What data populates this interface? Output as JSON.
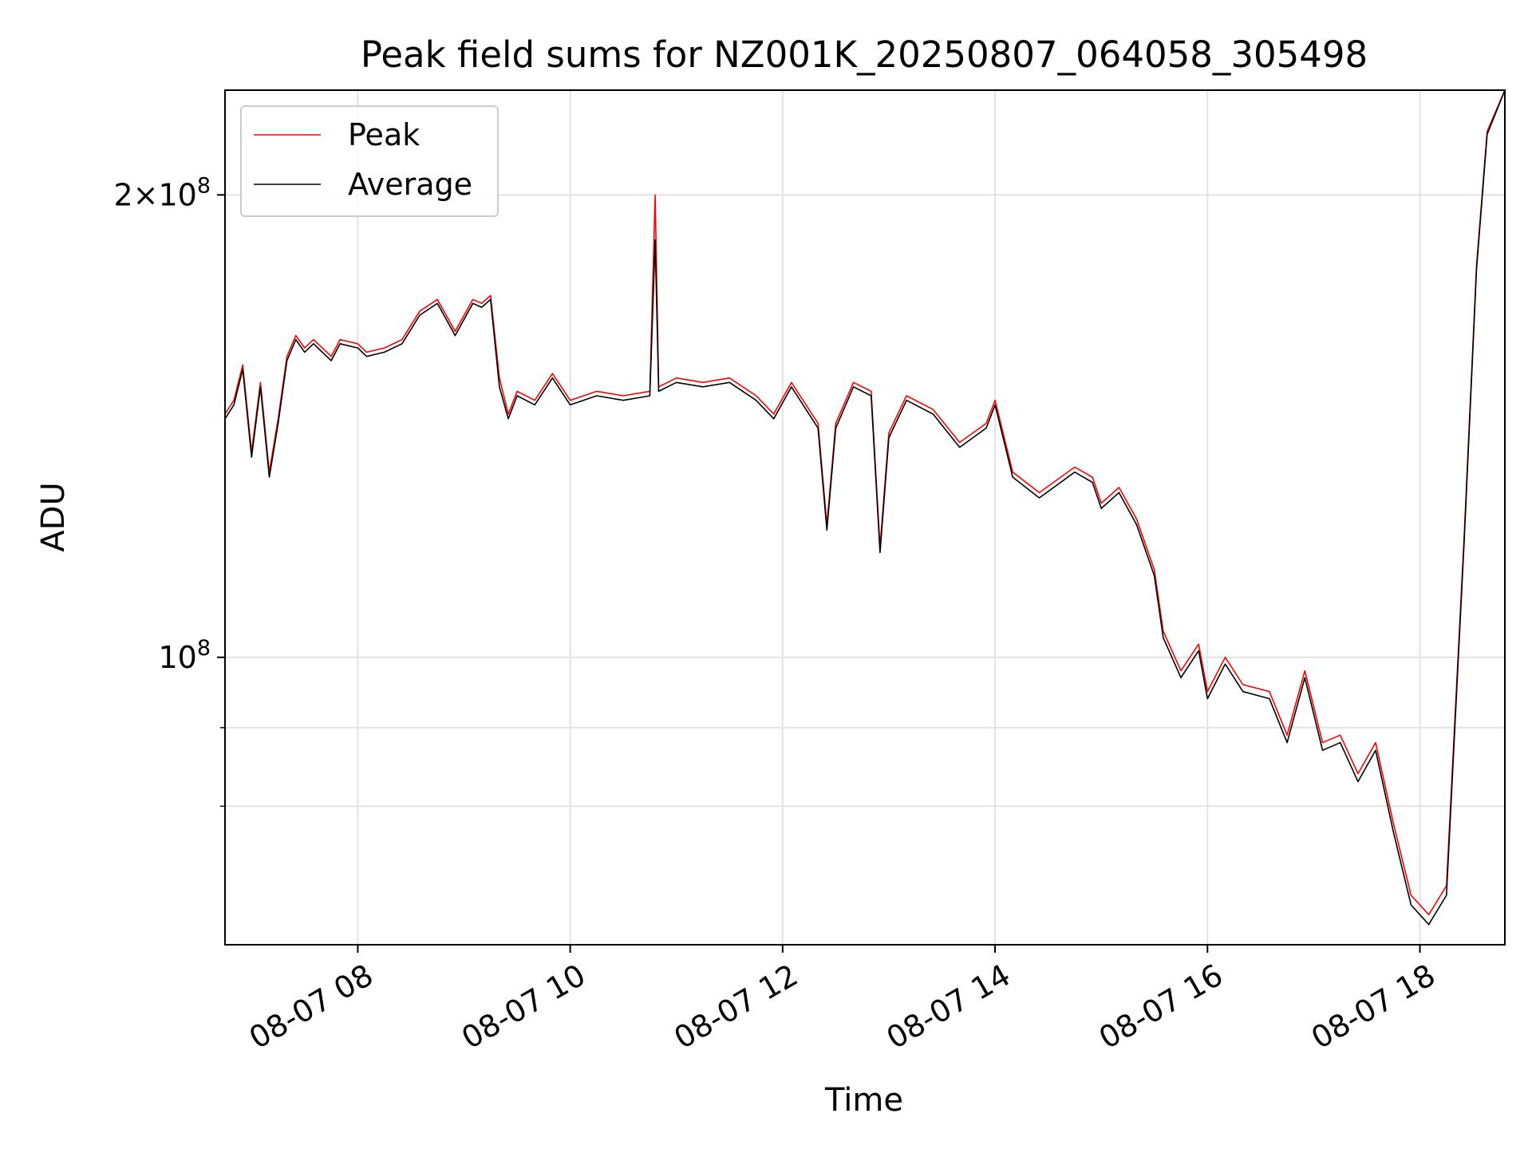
{
  "chart_data": {
    "type": "line",
    "title": "Peak field sums for NZ001K_20250807_064058_305498",
    "xlabel": "Time",
    "ylabel": "ADU",
    "y_scale": "log",
    "xlim": [
      "2025-08-07 06:45",
      "2025-08-07 18:48"
    ],
    "ylim": [
      65000000.0,
      234000000.0
    ],
    "x_ticks": [
      {
        "value": "2025-08-07 08:00",
        "label": "08-07 08"
      },
      {
        "value": "2025-08-07 10:00",
        "label": "08-07 10"
      },
      {
        "value": "2025-08-07 12:00",
        "label": "08-07 12"
      },
      {
        "value": "2025-08-07 14:00",
        "label": "08-07 14"
      },
      {
        "value": "2025-08-07 16:00",
        "label": "08-07 16"
      },
      {
        "value": "2025-08-07 18:00",
        "label": "08-07 18"
      }
    ],
    "y_ticks_major": [
      {
        "value": 100000000,
        "base": "10",
        "exp": "8",
        "mantissa": ""
      },
      {
        "value": 200000000,
        "base": "10",
        "exp": "8",
        "mantissa": "2"
      }
    ],
    "y_ticks_minor": [
      80000000,
      90000000
    ],
    "grid": true,
    "legend_position": "top-left",
    "series": [
      {
        "name": "Peak",
        "color": "#ff0000",
        "points": [
          [
            "2025-08-07 06:45",
            144000000.0
          ],
          [
            "2025-08-07 06:50",
            147000000.0
          ],
          [
            "2025-08-07 06:55",
            155000000.0
          ],
          [
            "2025-08-07 07:00",
            136000000.0
          ],
          [
            "2025-08-07 07:05",
            151000000.0
          ],
          [
            "2025-08-07 07:10",
            132000000.0
          ],
          [
            "2025-08-07 07:15",
            143000000.0
          ],
          [
            "2025-08-07 07:20",
            157000000.0
          ],
          [
            "2025-08-07 07:25",
            162000000.0
          ],
          [
            "2025-08-07 07:30",
            159000000.0
          ],
          [
            "2025-08-07 07:35",
            161000000.0
          ],
          [
            "2025-08-07 07:45",
            157000000.0
          ],
          [
            "2025-08-07 07:50",
            161000000.0
          ],
          [
            "2025-08-07 08:00",
            160000000.0
          ],
          [
            "2025-08-07 08:05",
            158000000.0
          ],
          [
            "2025-08-07 08:15",
            159000000.0
          ],
          [
            "2025-08-07 08:25",
            161000000.0
          ],
          [
            "2025-08-07 08:35",
            168000000.0
          ],
          [
            "2025-08-07 08:45",
            171000000.0
          ],
          [
            "2025-08-07 08:55",
            163000000.0
          ],
          [
            "2025-08-07 09:05",
            171000000.0
          ],
          [
            "2025-08-07 09:10",
            170000000.0
          ],
          [
            "2025-08-07 09:15",
            172000000.0
          ],
          [
            "2025-08-07 09:20",
            152000000.0
          ],
          [
            "2025-08-07 09:25",
            144000000.0
          ],
          [
            "2025-08-07 09:30",
            149000000.0
          ],
          [
            "2025-08-07 09:40",
            147000000.0
          ],
          [
            "2025-08-07 09:50",
            153000000.0
          ],
          [
            "2025-08-07 10:00",
            147000000.0
          ],
          [
            "2025-08-07 10:15",
            149000000.0
          ],
          [
            "2025-08-07 10:30",
            148000000.0
          ],
          [
            "2025-08-07 10:45",
            149000000.0
          ],
          [
            "2025-08-07 10:48",
            200000000.0
          ],
          [
            "2025-08-07 10:50",
            150000000.0
          ],
          [
            "2025-08-07 11:00",
            152000000.0
          ],
          [
            "2025-08-07 11:15",
            151000000.0
          ],
          [
            "2025-08-07 11:30",
            152000000.0
          ],
          [
            "2025-08-07 11:45",
            148000000.0
          ],
          [
            "2025-08-07 11:55",
            144000000.0
          ],
          [
            "2025-08-07 12:05",
            151000000.0
          ],
          [
            "2025-08-07 12:20",
            142000000.0
          ],
          [
            "2025-08-07 12:25",
            122000000.0
          ],
          [
            "2025-08-07 12:30",
            142000000.0
          ],
          [
            "2025-08-07 12:40",
            151000000.0
          ],
          [
            "2025-08-07 12:50",
            149000000.0
          ],
          [
            "2025-08-07 12:55",
            118000000.0
          ],
          [
            "2025-08-07 13:00",
            140000000.0
          ],
          [
            "2025-08-07 13:10",
            148000000.0
          ],
          [
            "2025-08-07 13:25",
            145000000.0
          ],
          [
            "2025-08-07 13:40",
            138000000.0
          ],
          [
            "2025-08-07 13:55",
            142000000.0
          ],
          [
            "2025-08-07 14:00",
            147000000.0
          ],
          [
            "2025-08-07 14:10",
            132000000.0
          ],
          [
            "2025-08-07 14:25",
            128000000.0
          ],
          [
            "2025-08-07 14:45",
            133000000.0
          ],
          [
            "2025-08-07 14:55",
            131000000.0
          ],
          [
            "2025-08-07 15:00",
            126000000.0
          ],
          [
            "2025-08-07 15:10",
            129000000.0
          ],
          [
            "2025-08-07 15:20",
            123000000.0
          ],
          [
            "2025-08-07 15:30",
            114000000.0
          ],
          [
            "2025-08-07 15:35",
            104000000.0
          ],
          [
            "2025-08-07 15:45",
            98000000.0
          ],
          [
            "2025-08-07 15:55",
            102000000.0
          ],
          [
            "2025-08-07 16:00",
            95000000.0
          ],
          [
            "2025-08-07 16:10",
            100000000.0
          ],
          [
            "2025-08-07 16:20",
            96000000.0
          ],
          [
            "2025-08-07 16:35",
            95000000.0
          ],
          [
            "2025-08-07 16:45",
            89000000.0
          ],
          [
            "2025-08-07 16:55",
            98000000.0
          ],
          [
            "2025-08-07 17:05",
            88000000.0
          ],
          [
            "2025-08-07 17:15",
            89000000.0
          ],
          [
            "2025-08-07 17:25",
            84000000.0
          ],
          [
            "2025-08-07 17:35",
            88000000.0
          ],
          [
            "2025-08-07 17:45",
            78000000.0
          ],
          [
            "2025-08-07 17:55",
            70000000.0
          ],
          [
            "2025-08-07 18:05",
            68000000.0
          ],
          [
            "2025-08-07 18:15",
            71000000.0
          ],
          [
            "2025-08-07 18:25",
            120000000.0
          ],
          [
            "2025-08-07 18:32",
            180000000.0
          ],
          [
            "2025-08-07 18:38",
            220000000.0
          ],
          [
            "2025-08-07 18:48",
            234000000.0
          ]
        ]
      },
      {
        "name": "Average",
        "color": "#000000",
        "points": [
          [
            "2025-08-07 06:45",
            143000000.0
          ],
          [
            "2025-08-07 06:50",
            146000000.0
          ],
          [
            "2025-08-07 06:55",
            154000000.0
          ],
          [
            "2025-08-07 07:00",
            135000000.0
          ],
          [
            "2025-08-07 07:05",
            150000000.0
          ],
          [
            "2025-08-07 07:10",
            131000000.0
          ],
          [
            "2025-08-07 07:15",
            142000000.0
          ],
          [
            "2025-08-07 07:20",
            156000000.0
          ],
          [
            "2025-08-07 07:25",
            161000000.0
          ],
          [
            "2025-08-07 07:30",
            158000000.0
          ],
          [
            "2025-08-07 07:35",
            160000000.0
          ],
          [
            "2025-08-07 07:45",
            156000000.0
          ],
          [
            "2025-08-07 07:50",
            160000000.0
          ],
          [
            "2025-08-07 08:00",
            159000000.0
          ],
          [
            "2025-08-07 08:05",
            157000000.0
          ],
          [
            "2025-08-07 08:15",
            158000000.0
          ],
          [
            "2025-08-07 08:25",
            160000000.0
          ],
          [
            "2025-08-07 08:35",
            167000000.0
          ],
          [
            "2025-08-07 08:45",
            170000000.0
          ],
          [
            "2025-08-07 08:55",
            162000000.0
          ],
          [
            "2025-08-07 09:05",
            170000000.0
          ],
          [
            "2025-08-07 09:10",
            169000000.0
          ],
          [
            "2025-08-07 09:15",
            171000000.0
          ],
          [
            "2025-08-07 09:20",
            150000000.0
          ],
          [
            "2025-08-07 09:25",
            143000000.0
          ],
          [
            "2025-08-07 09:30",
            148000000.0
          ],
          [
            "2025-08-07 09:40",
            146000000.0
          ],
          [
            "2025-08-07 09:50",
            152000000.0
          ],
          [
            "2025-08-07 10:00",
            146000000.0
          ],
          [
            "2025-08-07 10:15",
            148000000.0
          ],
          [
            "2025-08-07 10:30",
            147000000.0
          ],
          [
            "2025-08-07 10:45",
            148000000.0
          ],
          [
            "2025-08-07 10:48",
            187000000.0
          ],
          [
            "2025-08-07 10:50",
            149000000.0
          ],
          [
            "2025-08-07 11:00",
            151000000.0
          ],
          [
            "2025-08-07 11:15",
            150000000.0
          ],
          [
            "2025-08-07 11:30",
            151000000.0
          ],
          [
            "2025-08-07 11:45",
            147000000.0
          ],
          [
            "2025-08-07 11:55",
            143000000.0
          ],
          [
            "2025-08-07 12:05",
            150000000.0
          ],
          [
            "2025-08-07 12:20",
            141000000.0
          ],
          [
            "2025-08-07 12:25",
            121000000.0
          ],
          [
            "2025-08-07 12:30",
            141000000.0
          ],
          [
            "2025-08-07 12:40",
            150000000.0
          ],
          [
            "2025-08-07 12:50",
            148000000.0
          ],
          [
            "2025-08-07 12:55",
            117000000.0
          ],
          [
            "2025-08-07 13:00",
            139000000.0
          ],
          [
            "2025-08-07 13:10",
            147000000.0
          ],
          [
            "2025-08-07 13:25",
            144000000.0
          ],
          [
            "2025-08-07 13:40",
            137000000.0
          ],
          [
            "2025-08-07 13:55",
            141000000.0
          ],
          [
            "2025-08-07 14:00",
            146000000.0
          ],
          [
            "2025-08-07 14:10",
            131000000.0
          ],
          [
            "2025-08-07 14:25",
            127000000.0
          ],
          [
            "2025-08-07 14:45",
            132000000.0
          ],
          [
            "2025-08-07 14:55",
            130000000.0
          ],
          [
            "2025-08-07 15:00",
            125000000.0
          ],
          [
            "2025-08-07 15:10",
            128000000.0
          ],
          [
            "2025-08-07 15:20",
            122000000.0
          ],
          [
            "2025-08-07 15:30",
            113000000.0
          ],
          [
            "2025-08-07 15:35",
            103000000.0
          ],
          [
            "2025-08-07 15:45",
            97000000.0
          ],
          [
            "2025-08-07 15:55",
            101000000.0
          ],
          [
            "2025-08-07 16:00",
            94000000.0
          ],
          [
            "2025-08-07 16:10",
            99000000.0
          ],
          [
            "2025-08-07 16:20",
            95000000.0
          ],
          [
            "2025-08-07 16:35",
            94000000.0
          ],
          [
            "2025-08-07 16:45",
            88000000.0
          ],
          [
            "2025-08-07 16:55",
            97000000.0
          ],
          [
            "2025-08-07 17:05",
            87000000.0
          ],
          [
            "2025-08-07 17:15",
            88000000.0
          ],
          [
            "2025-08-07 17:25",
            83000000.0
          ],
          [
            "2025-08-07 17:35",
            87000000.0
          ],
          [
            "2025-08-07 17:45",
            77000000.0
          ],
          [
            "2025-08-07 17:55",
            69000000.0
          ],
          [
            "2025-08-07 18:05",
            67000000.0
          ],
          [
            "2025-08-07 18:15",
            70000000.0
          ],
          [
            "2025-08-07 18:25",
            119000000.0
          ],
          [
            "2025-08-07 18:32",
            179000000.0
          ],
          [
            "2025-08-07 18:38",
            219000000.0
          ],
          [
            "2025-08-07 18:48",
            234000000.0
          ]
        ]
      }
    ]
  }
}
